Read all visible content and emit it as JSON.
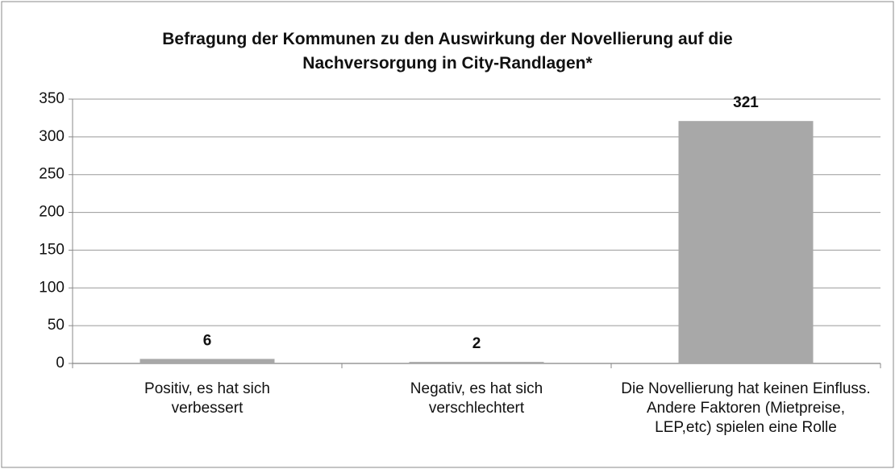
{
  "chart_data": {
    "type": "bar",
    "title": "Befragung der Kommunen zu den Auswirkung der Novellierung auf die Nachversorgung in City-Randlagen*",
    "categories": [
      "Positiv, es hat sich verbessert",
      "Negativ, es hat sich verschlechtert",
      "Die Novellierung hat keinen Einfluss. Andere Faktoren (Mietpreise, LEP,etc) spielen eine Rolle"
    ],
    "values": [
      6,
      2,
      321
    ],
    "color": "#a8a8a8",
    "ylim": [
      0,
      350
    ],
    "yticks": [
      0,
      50,
      100,
      150,
      200,
      250,
      300,
      350
    ],
    "grid": true
  }
}
